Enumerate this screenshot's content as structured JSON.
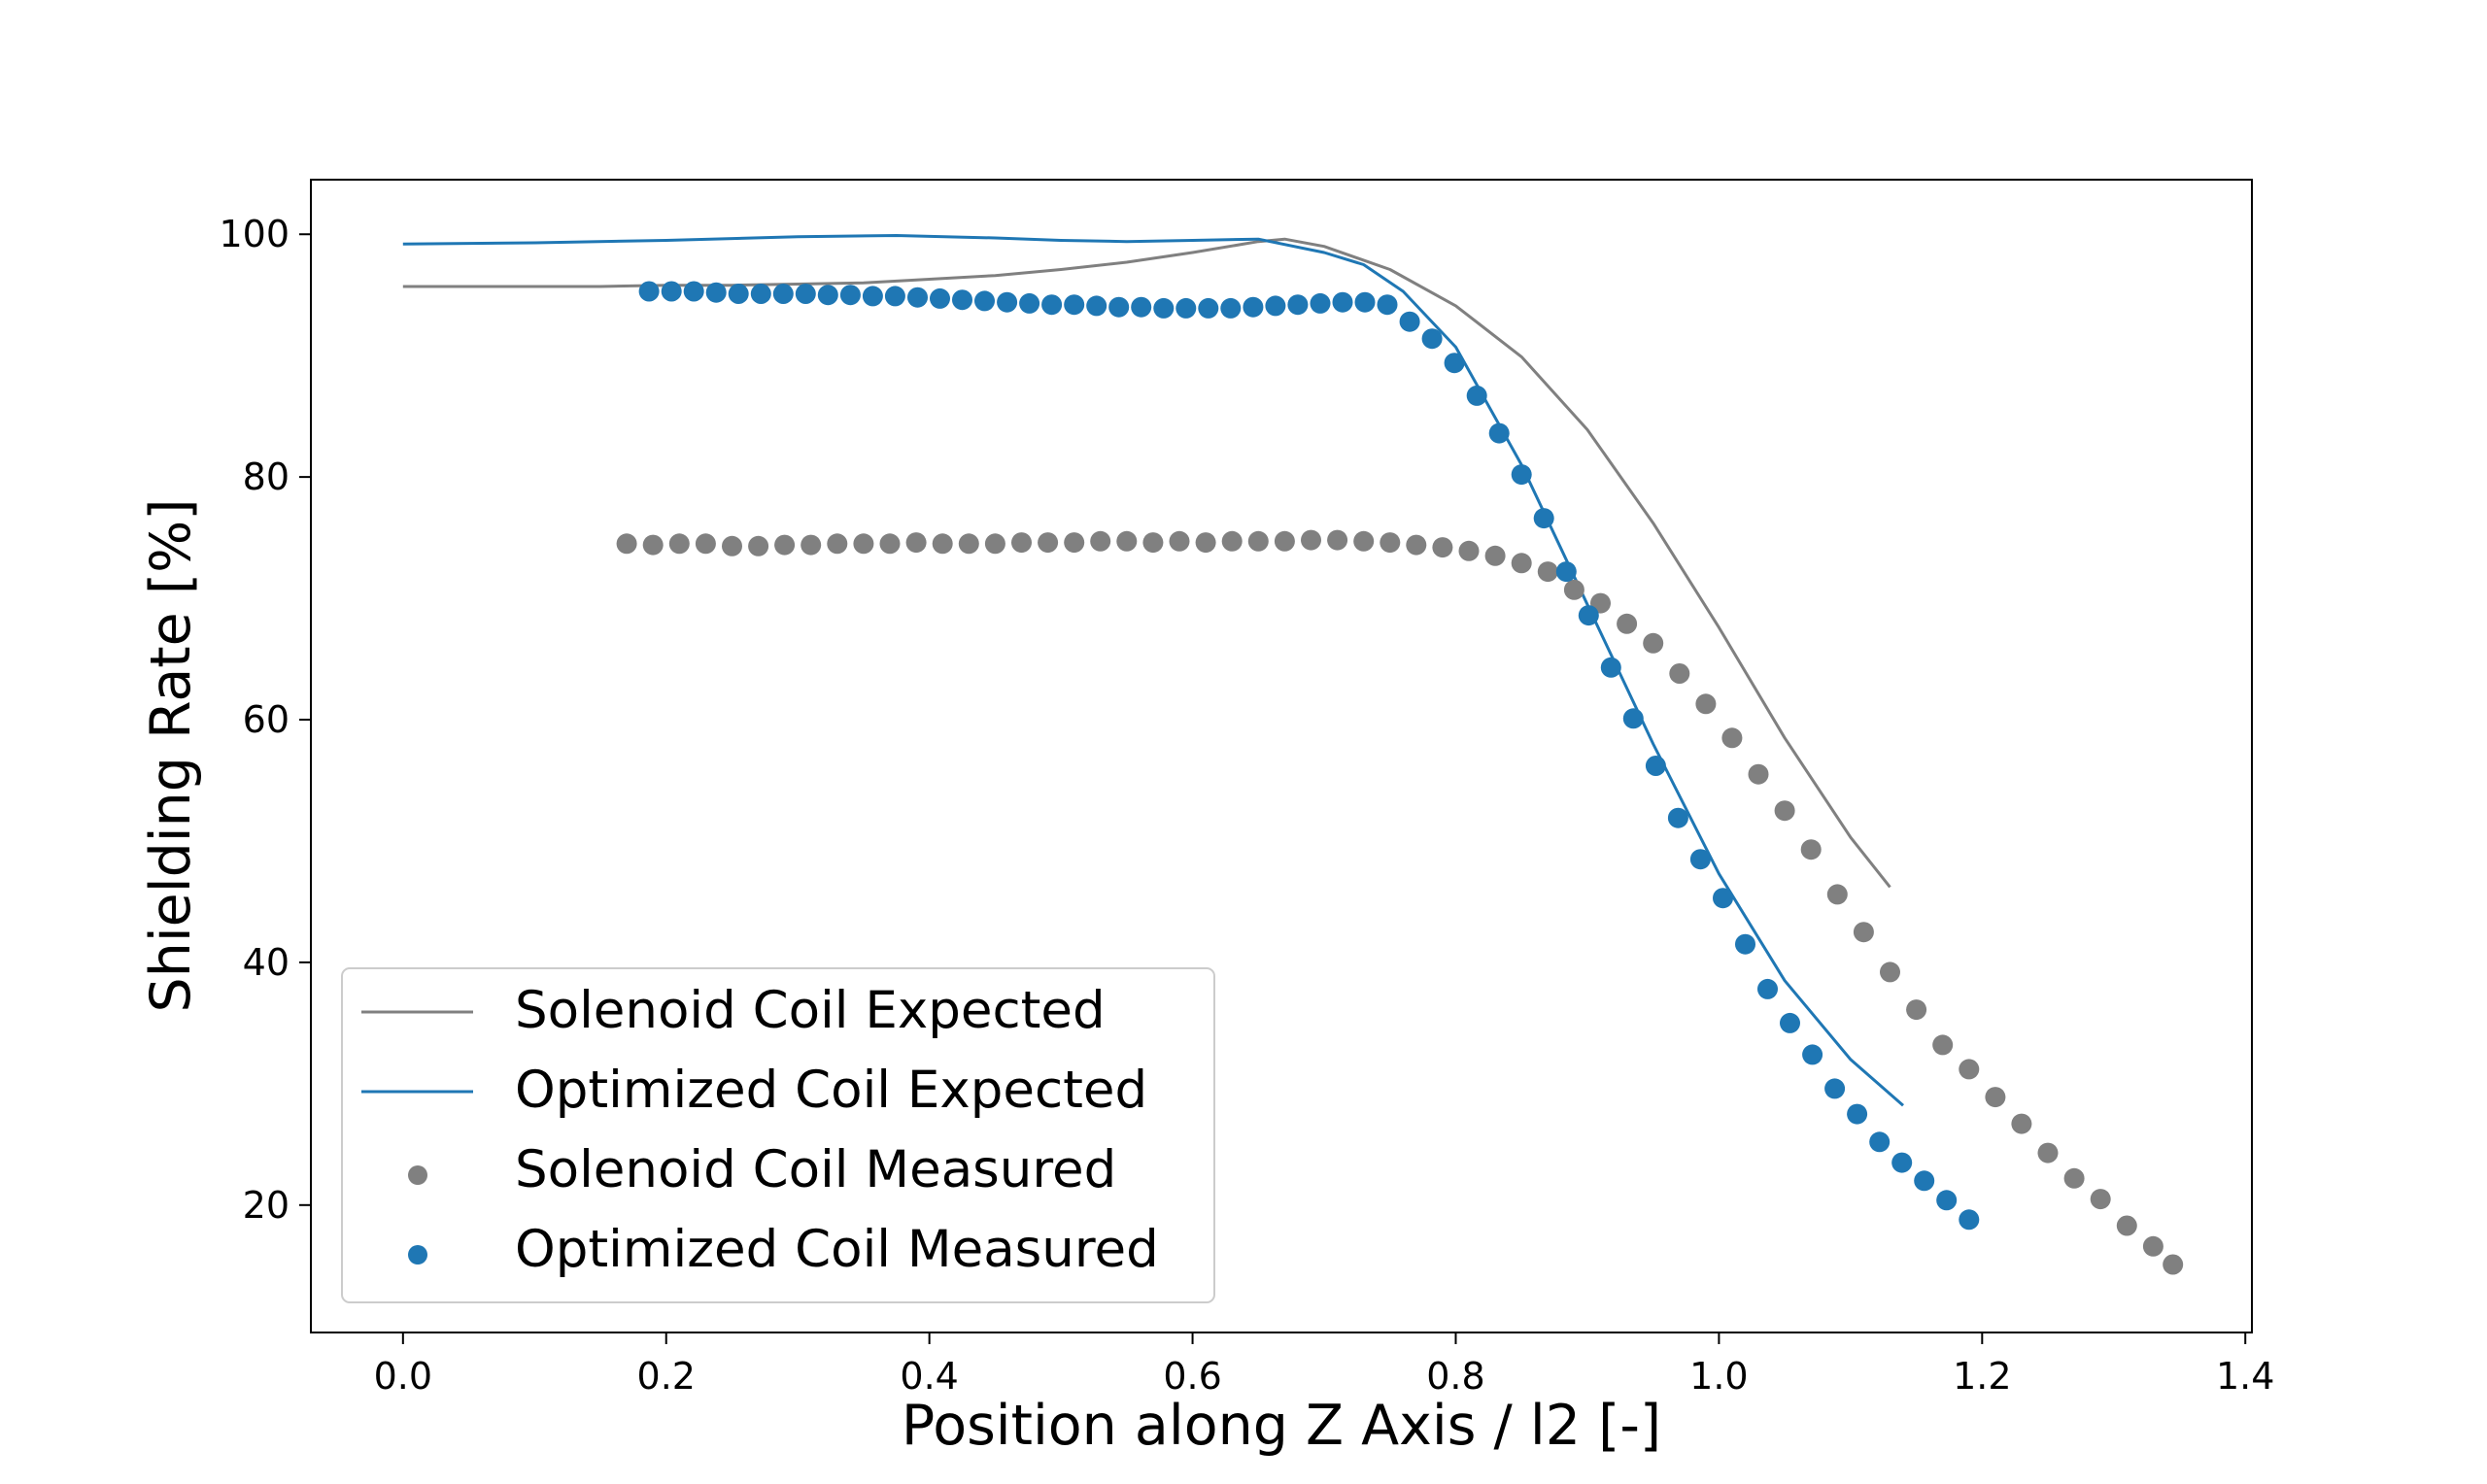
{
  "chart_data": {
    "type": "line",
    "xlabel": "Position along Z Axis / l2 [-]",
    "ylabel": "Shielding Rate [%]",
    "xlim": [
      -0.07,
      1.405
    ],
    "ylim": [
      9.5,
      104.5
    ],
    "xticks": [
      0.0,
      0.2,
      0.4,
      0.6,
      0.8,
      1.0,
      1.2,
      1.4
    ],
    "xtick_labels": [
      "0.0",
      "0.2",
      "0.4",
      "0.6",
      "0.8",
      "1.0",
      "1.2",
      "1.4"
    ],
    "yticks": [
      20,
      40,
      60,
      80,
      100
    ],
    "ytick_labels": [
      "20",
      "40",
      "60",
      "80",
      "100"
    ],
    "grid": false,
    "legend_position": "lower-left",
    "colors": {
      "solenoid": "#808080",
      "optimized": "#1f77b4"
    },
    "series": [
      {
        "name": "Solenoid Coil Expected",
        "kind": "line",
        "color": "#808080",
        "x": [
          0.0,
          0.05,
          0.1,
          0.15,
          0.2,
          0.25,
          0.3,
          0.35,
          0.4,
          0.45,
          0.5,
          0.55,
          0.6,
          0.65,
          0.67,
          0.7,
          0.75,
          0.8,
          0.85,
          0.9,
          0.95,
          1.0,
          1.05,
          1.1,
          1.13
        ],
        "y": [
          95.7,
          95.7,
          95.7,
          95.7,
          95.8,
          95.8,
          95.9,
          96.0,
          96.3,
          96.6,
          97.1,
          97.7,
          98.5,
          99.4,
          99.6,
          99.0,
          97.1,
          94.1,
          89.9,
          83.9,
          76.2,
          67.6,
          58.5,
          50.3,
          46.2
        ]
      },
      {
        "name": "Optimized Coil Expected",
        "kind": "line",
        "color": "#1f77b4",
        "x": [
          0.0,
          0.1,
          0.2,
          0.3,
          0.375,
          0.45,
          0.5,
          0.55,
          0.6,
          0.65,
          0.7,
          0.73,
          0.76,
          0.8,
          0.85,
          0.9,
          0.95,
          1.0,
          1.05,
          1.1,
          1.14
        ],
        "y": [
          99.2,
          99.3,
          99.5,
          99.8,
          99.9,
          99.7,
          99.5,
          99.4,
          99.5,
          99.6,
          98.5,
          97.5,
          95.3,
          90.7,
          81.0,
          69.5,
          58.0,
          47.3,
          38.5,
          32.0,
          28.2
        ]
      },
      {
        "name": "Solenoid Coil Measured",
        "kind": "scatter",
        "color": "#808080",
        "x": [
          0.17,
          0.19,
          0.21,
          0.23,
          0.25,
          0.27,
          0.29,
          0.31,
          0.33,
          0.35,
          0.37,
          0.39,
          0.41,
          0.43,
          0.45,
          0.47,
          0.49,
          0.51,
          0.53,
          0.55,
          0.57,
          0.59,
          0.61,
          0.63,
          0.65,
          0.67,
          0.69,
          0.71,
          0.73,
          0.75,
          0.77,
          0.79,
          0.81,
          0.83,
          0.85,
          0.87,
          0.89,
          0.91,
          0.93,
          0.95,
          0.97,
          0.99,
          1.01,
          1.03,
          1.05,
          1.07,
          1.09,
          1.11,
          1.13,
          1.15,
          1.17,
          1.19,
          1.21,
          1.23,
          1.25,
          1.27,
          1.29,
          1.31,
          1.33,
          1.345
        ],
        "y": [
          74.5,
          74.4,
          74.5,
          74.5,
          74.3,
          74.3,
          74.4,
          74.4,
          74.5,
          74.5,
          74.5,
          74.6,
          74.5,
          74.5,
          74.5,
          74.6,
          74.6,
          74.6,
          74.7,
          74.7,
          74.6,
          74.7,
          74.6,
          74.7,
          74.7,
          74.7,
          74.8,
          74.8,
          74.7,
          74.6,
          74.4,
          74.2,
          73.9,
          73.5,
          72.9,
          72.2,
          70.7,
          69.6,
          67.9,
          66.3,
          63.8,
          61.3,
          58.5,
          55.5,
          52.5,
          49.3,
          45.6,
          42.5,
          39.2,
          36.1,
          33.2,
          31.2,
          28.9,
          26.7,
          24.3,
          22.2,
          20.5,
          18.3,
          16.6,
          15.1
        ]
      },
      {
        "name": "Optimized Coil Measured",
        "kind": "scatter",
        "color": "#1f77b4",
        "x": [
          0.187,
          0.204,
          0.221,
          0.238,
          0.255,
          0.272,
          0.289,
          0.306,
          0.323,
          0.34,
          0.357,
          0.374,
          0.391,
          0.408,
          0.425,
          0.442,
          0.459,
          0.476,
          0.493,
          0.51,
          0.527,
          0.544,
          0.561,
          0.578,
          0.595,
          0.612,
          0.629,
          0.646,
          0.663,
          0.68,
          0.697,
          0.714,
          0.731,
          0.748,
          0.765,
          0.782,
          0.799,
          0.816,
          0.833,
          0.85,
          0.867,
          0.884,
          0.901,
          0.918,
          0.935,
          0.952,
          0.969,
          0.986,
          1.003,
          1.02,
          1.037,
          1.054,
          1.071,
          1.088,
          1.105,
          1.122,
          1.139,
          1.156,
          1.173,
          1.19
        ],
        "y": [
          95.3,
          95.3,
          95.3,
          95.2,
          95.1,
          95.1,
          95.1,
          95.1,
          95.0,
          95.0,
          94.9,
          94.9,
          94.8,
          94.7,
          94.6,
          94.5,
          94.4,
          94.3,
          94.2,
          94.2,
          94.1,
          94.0,
          94.0,
          93.9,
          93.9,
          93.9,
          93.9,
          94.0,
          94.1,
          94.2,
          94.3,
          94.4,
          94.4,
          94.2,
          92.8,
          91.4,
          89.4,
          86.7,
          83.6,
          80.2,
          76.6,
          72.2,
          68.6,
          64.3,
          60.1,
          56.2,
          51.9,
          48.5,
          45.3,
          41.5,
          37.8,
          35.0,
          32.4,
          29.6,
          27.5,
          25.2,
          23.5,
          22.0,
          20.4,
          18.8
        ]
      }
    ]
  }
}
